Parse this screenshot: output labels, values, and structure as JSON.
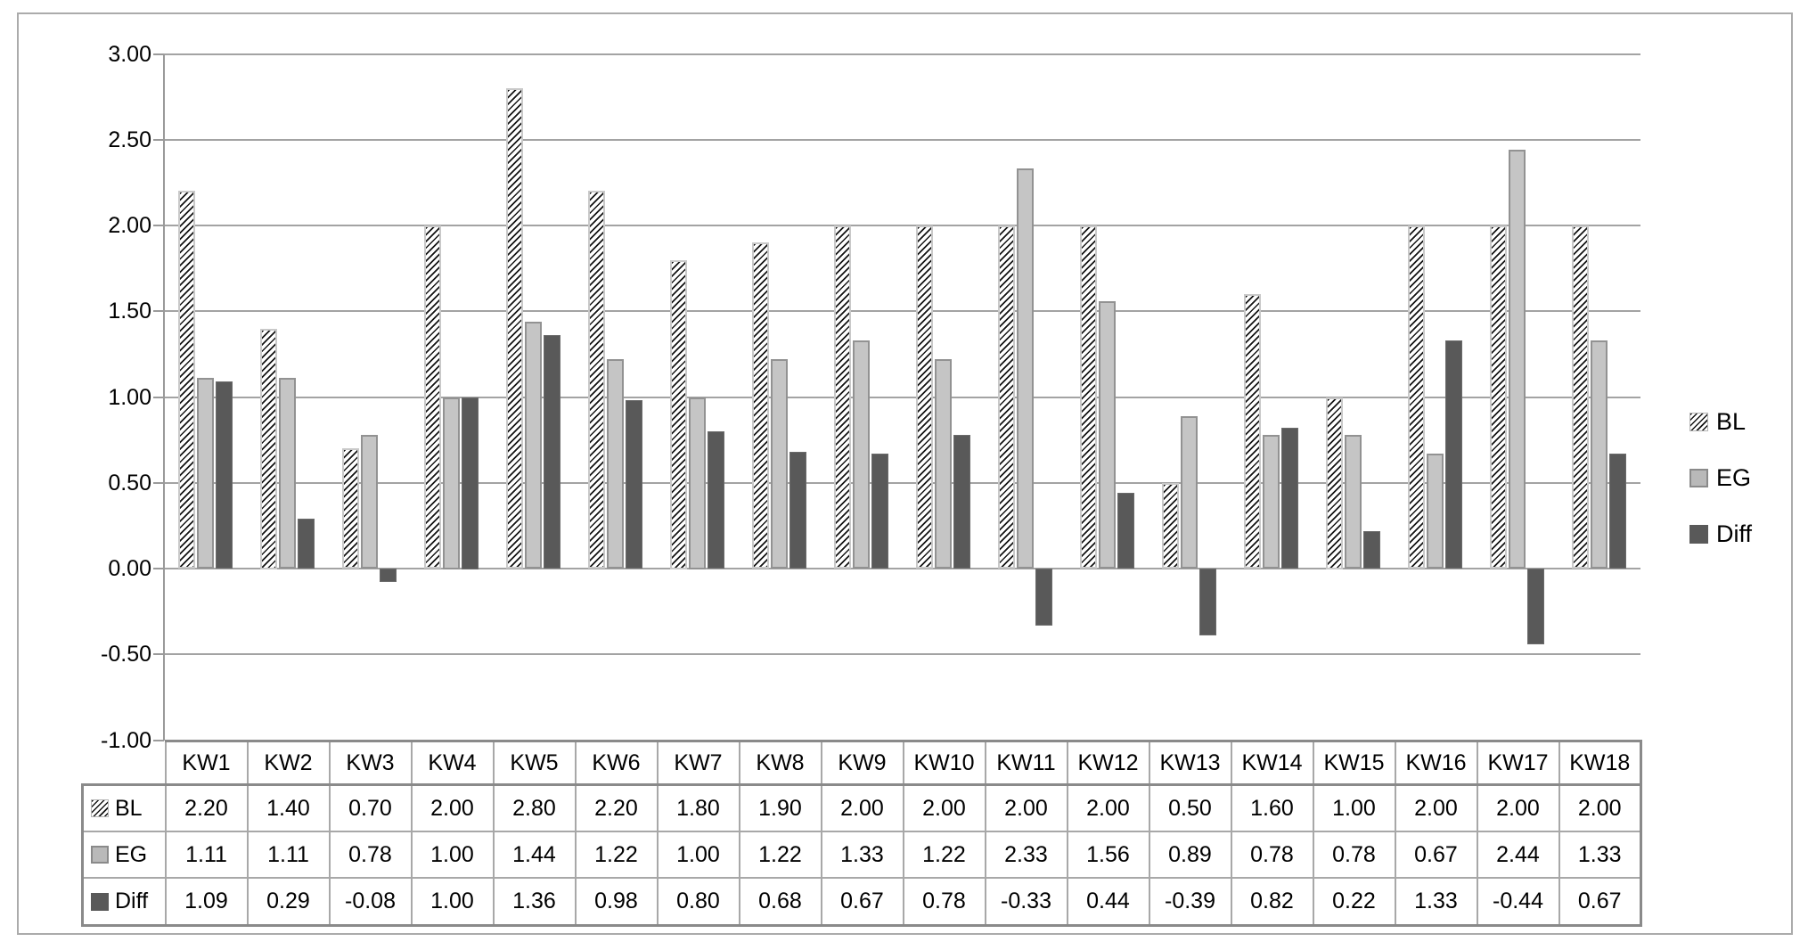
{
  "chart": {
    "y_axis": {
      "tick_labels": [
        "3.00",
        "2.50",
        "2.00",
        "1.50",
        "1.00",
        "0.50",
        "0.00",
        "-0.50",
        "-1.00"
      ],
      "min": -1.0,
      "max": 3.0,
      "step": 0.5
    },
    "legend": {
      "position": "right",
      "items": [
        {
          "label": "BL",
          "swatch": "hatch-diagonal"
        },
        {
          "label": "EG",
          "swatch": "light-gray"
        },
        {
          "label": "Diff",
          "swatch": "dark-gray"
        }
      ]
    },
    "colors": {
      "grid": "#a3a3a3",
      "axis": "#9a9a9a",
      "frame_border": "#ababab",
      "table_border": "#a8a8a8",
      "eg_fill": "#c5c5c5",
      "eg_border": "#929292",
      "diff_fill": "#595959",
      "hatch_line": "#141414",
      "text": "#000000"
    }
  },
  "chart_data": {
    "type": "bar",
    "title": "",
    "xlabel": "",
    "ylabel": "",
    "ylim": [
      -1.0,
      3.0
    ],
    "grid": true,
    "legend_position": "right",
    "data_table_attached": true,
    "categories": [
      "KW1",
      "KW2",
      "KW3",
      "KW4",
      "KW5",
      "KW6",
      "KW7",
      "KW8",
      "KW9",
      "KW10",
      "KW11",
      "KW12",
      "KW13",
      "KW14",
      "KW15",
      "KW16",
      "KW17",
      "KW18"
    ],
    "series": [
      {
        "name": "BL",
        "values": [
          2.2,
          1.4,
          0.7,
          2.0,
          2.8,
          2.2,
          1.8,
          1.9,
          2.0,
          2.0,
          2.0,
          2.0,
          0.5,
          1.6,
          1.0,
          2.0,
          2.0,
          2.0
        ]
      },
      {
        "name": "EG",
        "values": [
          1.11,
          1.11,
          0.78,
          1.0,
          1.44,
          1.22,
          1.0,
          1.22,
          1.33,
          1.22,
          2.33,
          1.56,
          0.89,
          0.78,
          0.78,
          0.67,
          2.44,
          1.33
        ]
      },
      {
        "name": "Diff",
        "values": [
          1.09,
          0.29,
          -0.08,
          1.0,
          1.36,
          0.98,
          0.8,
          0.68,
          0.67,
          0.78,
          -0.33,
          0.44,
          -0.39,
          0.82,
          0.22,
          1.33,
          -0.44,
          0.67
        ]
      }
    ]
  }
}
